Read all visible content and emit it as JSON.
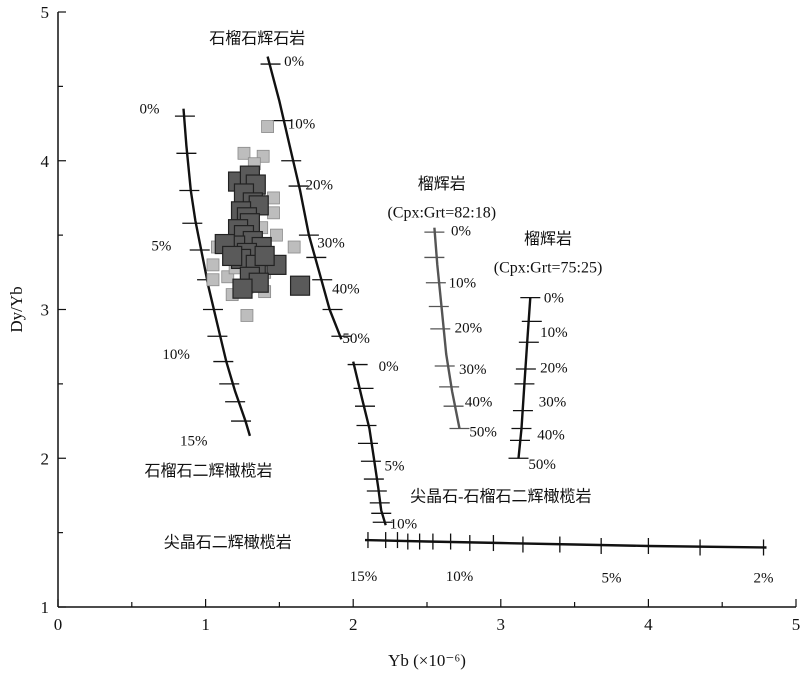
{
  "chart_data": {
    "type": "scatter",
    "title": "",
    "xlabel": "Yb (×10⁻⁶)",
    "ylabel": "Dy/Yb",
    "xlim": [
      0,
      5
    ],
    "ylim": [
      1,
      5
    ],
    "x_ticks": [
      "0",
      "1",
      "2",
      "3",
      "4",
      "5"
    ],
    "y_ticks": [
      "1",
      "2",
      "3",
      "4",
      "5"
    ],
    "grid": false,
    "legend": "none",
    "colors": {
      "sample_dark": "#5a5a5a",
      "sample_light": "#bdbdbd",
      "curve": "#111111",
      "curve_gray": "#555555"
    },
    "series": [
      {
        "points": [
          [
            1.22,
            3.86
          ],
          [
            1.3,
            3.9
          ],
          [
            1.34,
            3.84
          ],
          [
            1.26,
            3.78
          ],
          [
            1.32,
            3.72
          ],
          [
            1.36,
            3.7
          ],
          [
            1.24,
            3.66
          ],
          [
            1.28,
            3.62
          ],
          [
            1.3,
            3.58
          ],
          [
            1.22,
            3.54
          ],
          [
            1.26,
            3.5
          ],
          [
            1.32,
            3.46
          ],
          [
            1.2,
            3.43
          ],
          [
            1.38,
            3.42
          ],
          [
            1.28,
            3.38
          ],
          [
            1.13,
            3.44
          ],
          [
            1.24,
            3.34
          ],
          [
            1.34,
            3.3
          ],
          [
            1.48,
            3.3
          ],
          [
            1.3,
            3.22
          ],
          [
            1.36,
            3.18
          ],
          [
            1.25,
            3.14
          ],
          [
            1.64,
            3.16
          ],
          [
            1.18,
            3.36
          ],
          [
            1.4,
            3.36
          ]
        ]
      },
      {
        "points": [
          [
            1.42,
            4.23
          ],
          [
            1.26,
            4.05
          ],
          [
            1.39,
            4.03
          ],
          [
            1.33,
            3.98
          ],
          [
            1.36,
            3.8
          ],
          [
            1.46,
            3.75
          ],
          [
            1.46,
            3.65
          ],
          [
            1.38,
            3.55
          ],
          [
            1.2,
            3.55
          ],
          [
            1.48,
            3.5
          ],
          [
            1.6,
            3.42
          ],
          [
            1.08,
            3.42
          ],
          [
            1.05,
            3.3
          ],
          [
            1.4,
            3.25
          ],
          [
            1.15,
            3.22
          ],
          [
            1.05,
            3.2
          ],
          [
            1.28,
            3.15
          ],
          [
            1.4,
            3.12
          ],
          [
            1.18,
            3.1
          ],
          [
            1.28,
            2.96
          ],
          [
            1.2,
            3.28
          ],
          [
            1.36,
            3.26
          ]
        ]
      }
    ],
    "curves": [
      {
        "label": "石榴石二辉橄榄岩",
        "path": [
          [
            0.85,
            4.35
          ],
          [
            0.87,
            4.1
          ],
          [
            0.9,
            3.8
          ],
          [
            0.93,
            3.6
          ],
          [
            0.97,
            3.4
          ],
          [
            1.02,
            3.15
          ],
          [
            1.08,
            2.9
          ],
          [
            1.14,
            2.65
          ],
          [
            1.2,
            2.45
          ],
          [
            1.27,
            2.25
          ],
          [
            1.3,
            2.15
          ]
        ],
        "ticks": [
          [
            0.86,
            4.3
          ],
          [
            0.87,
            4.05
          ],
          [
            0.89,
            3.8
          ],
          [
            0.91,
            3.58
          ],
          [
            0.96,
            3.4
          ],
          [
            1.01,
            3.2
          ],
          [
            1.05,
            3.0
          ],
          [
            1.08,
            2.82
          ],
          [
            1.12,
            2.65
          ],
          [
            1.16,
            2.5
          ],
          [
            1.2,
            2.38
          ],
          [
            1.24,
            2.25
          ]
        ],
        "pct_labels": [
          {
            "text": "0%",
            "at": [
              0.62,
              4.35
            ]
          },
          {
            "text": "5%",
            "at": [
              0.7,
              3.43
            ]
          },
          {
            "text": "10%",
            "at": [
              0.8,
              2.7
            ]
          },
          {
            "text": "15%",
            "at": [
              0.92,
              2.12
            ]
          }
        ],
        "name_at": [
          1.02,
          1.92
        ]
      },
      {
        "label": "石榴石辉石岩",
        "path": [
          [
            1.42,
            4.7
          ],
          [
            1.5,
            4.4
          ],
          [
            1.57,
            4.1
          ],
          [
            1.64,
            3.8
          ],
          [
            1.7,
            3.5
          ],
          [
            1.77,
            3.25
          ],
          [
            1.84,
            3.0
          ],
          [
            1.92,
            2.8
          ]
        ],
        "ticks": [
          [
            1.44,
            4.65
          ],
          [
            1.52,
            4.27
          ],
          [
            1.58,
            4.0
          ],
          [
            1.63,
            3.83
          ],
          [
            1.7,
            3.5
          ],
          [
            1.75,
            3.35
          ],
          [
            1.79,
            3.2
          ],
          [
            1.86,
            3.0
          ],
          [
            1.92,
            2.82
          ]
        ],
        "pct_labels": [
          {
            "text": "0%",
            "at": [
              1.6,
              4.67
            ]
          },
          {
            "text": "10%",
            "at": [
              1.65,
              4.25
            ]
          },
          {
            "text": "20%",
            "at": [
              1.77,
              3.84
            ]
          },
          {
            "text": "30%",
            "at": [
              1.85,
              3.45
            ]
          },
          {
            "text": "40%",
            "at": [
              1.95,
              3.14
            ]
          },
          {
            "text": "50%",
            "at": [
              2.02,
              2.81
            ]
          }
        ],
        "name_at": [
          1.35,
          4.83
        ]
      },
      {
        "label": "尖晶石-石榴石二辉橄榄岩",
        "path": [
          [
            2.0,
            2.65
          ],
          [
            2.06,
            2.4
          ],
          [
            2.11,
            2.2
          ],
          [
            2.14,
            2.0
          ],
          [
            2.17,
            1.8
          ],
          [
            2.19,
            1.65
          ],
          [
            2.22,
            1.55
          ]
        ],
        "ticks": [
          [
            2.03,
            2.63
          ],
          [
            2.07,
            2.47
          ],
          [
            2.08,
            2.35
          ],
          [
            2.09,
            2.22
          ],
          [
            2.1,
            2.1
          ],
          [
            2.12,
            1.98
          ],
          [
            2.14,
            1.86
          ],
          [
            2.16,
            1.78
          ],
          [
            2.18,
            1.7
          ],
          [
            2.19,
            1.63
          ],
          [
            2.2,
            1.57
          ]
        ],
        "pct_labels": [
          {
            "text": "0%",
            "at": [
              2.24,
              2.62
            ]
          },
          {
            "text": "5%",
            "at": [
              2.28,
              1.95
            ]
          },
          {
            "text": "10%",
            "at": [
              2.34,
              1.56
            ]
          }
        ],
        "name_at": [
          3.0,
          1.75
        ]
      },
      {
        "label": "尖晶石二辉橄榄岩",
        "path": [
          [
            2.08,
            1.45
          ],
          [
            2.5,
            1.44
          ],
          [
            3.0,
            1.43
          ],
          [
            3.5,
            1.42
          ],
          [
            4.0,
            1.41
          ],
          [
            4.8,
            1.4
          ]
        ],
        "ticks": [
          [
            2.1,
            1.45
          ],
          [
            2.22,
            1.45
          ],
          [
            2.3,
            1.45
          ],
          [
            2.37,
            1.44
          ],
          [
            2.45,
            1.44
          ],
          [
            2.54,
            1.44
          ],
          [
            2.66,
            1.44
          ],
          [
            2.79,
            1.43
          ],
          [
            2.95,
            1.43
          ],
          [
            3.15,
            1.42
          ],
          [
            3.4,
            1.42
          ],
          [
            3.68,
            1.41
          ],
          [
            4.0,
            1.41
          ],
          [
            4.35,
            1.4
          ],
          [
            4.78,
            1.4
          ]
        ],
        "pct_labels": [
          {
            "text": "15%",
            "at": [
              2.07,
              1.21
            ]
          },
          {
            "text": "10%",
            "at": [
              2.72,
              1.21
            ]
          },
          {
            "text": "5%",
            "at": [
              3.75,
              1.2
            ]
          },
          {
            "text": "2%",
            "at": [
              4.78,
              1.2
            ]
          }
        ],
        "name_at": [
          1.15,
          1.44
        ]
      },
      {
        "label": "榴辉岩",
        "label2": "(Cpx:Grt=82:18)",
        "path": [
          [
            2.55,
            3.55
          ],
          [
            2.57,
            3.3
          ],
          [
            2.6,
            3.0
          ],
          [
            2.63,
            2.7
          ],
          [
            2.67,
            2.45
          ],
          [
            2.72,
            2.2
          ]
        ],
        "ticks": [
          [
            2.55,
            3.52
          ],
          [
            2.55,
            3.35
          ],
          [
            2.56,
            3.18
          ],
          [
            2.58,
            3.02
          ],
          [
            2.59,
            2.87
          ],
          [
            2.62,
            2.62
          ],
          [
            2.65,
            2.48
          ],
          [
            2.68,
            2.35
          ],
          [
            2.72,
            2.2
          ]
        ],
        "pct_labels": [
          {
            "text": "0%",
            "at": [
              2.73,
              3.53
            ]
          },
          {
            "text": "10%",
            "at": [
              2.74,
              3.18
            ]
          },
          {
            "text": "20%",
            "at": [
              2.78,
              2.88
            ]
          },
          {
            "text": "30%",
            "at": [
              2.81,
              2.6
            ]
          },
          {
            "text": "40%",
            "at": [
              2.85,
              2.38
            ]
          },
          {
            "text": "50%",
            "at": [
              2.88,
              2.18
            ]
          }
        ],
        "name_at": [
          2.6,
          3.85
        ],
        "name2_at": [
          2.6,
          3.66
        ]
      },
      {
        "label": "榴辉岩",
        "label2": "(Cpx:Grt=75:25)",
        "path": [
          [
            3.2,
            3.08
          ],
          [
            3.18,
            2.8
          ],
          [
            3.16,
            2.5
          ],
          [
            3.14,
            2.2
          ],
          [
            3.12,
            2.0
          ]
        ],
        "ticks": [
          [
            3.2,
            3.08
          ],
          [
            3.21,
            2.92
          ],
          [
            3.19,
            2.78
          ],
          [
            3.17,
            2.6
          ],
          [
            3.16,
            2.5
          ],
          [
            3.15,
            2.32
          ],
          [
            3.14,
            2.2
          ],
          [
            3.13,
            2.12
          ],
          [
            3.12,
            2.0
          ]
        ],
        "pct_labels": [
          {
            "text": "0%",
            "at": [
              3.36,
              3.08
            ]
          },
          {
            "text": "10%",
            "at": [
              3.36,
              2.85
            ]
          },
          {
            "text": "20%",
            "at": [
              3.36,
              2.61
            ]
          },
          {
            "text": "30%",
            "at": [
              3.35,
              2.38
            ]
          },
          {
            "text": "40%",
            "at": [
              3.34,
              2.16
            ]
          },
          {
            "text": "50%",
            "at": [
              3.28,
              1.96
            ]
          }
        ],
        "name_at": [
          3.32,
          3.48
        ],
        "name2_at": [
          3.32,
          3.29
        ]
      }
    ]
  }
}
